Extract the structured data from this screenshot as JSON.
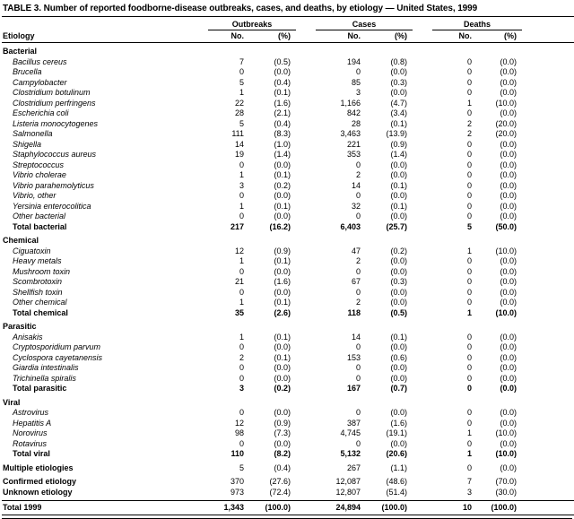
{
  "title": "TABLE 3. Number of reported foodborne-disease outbreaks, cases, and deaths, by etiology — United States, 1999",
  "table": {
    "columns": {
      "etiology": "Etiology",
      "groups": [
        {
          "label": "Outbreaks",
          "sub": [
            "No.",
            "(%)"
          ]
        },
        {
          "label": "Cases",
          "sub": [
            "No.",
            "(%)"
          ]
        },
        {
          "label": "Deaths",
          "sub": [
            "No.",
            "(%)"
          ]
        }
      ]
    },
    "sections": [
      {
        "header": "Bacterial",
        "rows": [
          {
            "label": "Bacillus cereus",
            "values": [
              "7",
              "(0.5)",
              "194",
              "(0.8)",
              "0",
              "(0.0)"
            ]
          },
          {
            "label": "Brucella",
            "values": [
              "0",
              "(0.0)",
              "0",
              "(0.0)",
              "0",
              "(0.0)"
            ]
          },
          {
            "label": "Campylobacter",
            "values": [
              "5",
              "(0.4)",
              "85",
              "(0.3)",
              "0",
              "(0.0)"
            ]
          },
          {
            "label": "Clostridium botulinum",
            "values": [
              "1",
              "(0.1)",
              "3",
              "(0.0)",
              "0",
              "(0.0)"
            ]
          },
          {
            "label": "Clostridium perfringens",
            "values": [
              "22",
              "(1.6)",
              "1,166",
              "(4.7)",
              "1",
              "(10.0)"
            ]
          },
          {
            "label": "Escherichia coli",
            "values": [
              "28",
              "(2.1)",
              "842",
              "(3.4)",
              "0",
              "(0.0)"
            ]
          },
          {
            "label": "Listeria monocytogenes",
            "values": [
              "5",
              "(0.4)",
              "28",
              "(0.1)",
              "2",
              "(20.0)"
            ]
          },
          {
            "label": "Salmonella",
            "values": [
              "111",
              "(8.3)",
              "3,463",
              "(13.9)",
              "2",
              "(20.0)"
            ]
          },
          {
            "label": "Shigella",
            "values": [
              "14",
              "(1.0)",
              "221",
              "(0.9)",
              "0",
              "(0.0)"
            ]
          },
          {
            "label": "Staphylococcus aureus",
            "values": [
              "19",
              "(1.4)",
              "353",
              "(1.4)",
              "0",
              "(0.0)"
            ]
          },
          {
            "label": "Streptococcus",
            "values": [
              "0",
              "(0.0)",
              "0",
              "(0.0)",
              "0",
              "(0.0)"
            ]
          },
          {
            "label": "Vibrio cholerae",
            "values": [
              "1",
              "(0.1)",
              "2",
              "(0.0)",
              "0",
              "(0.0)"
            ]
          },
          {
            "label": "Vibrio parahemolyticus",
            "values": [
              "3",
              "(0.2)",
              "14",
              "(0.1)",
              "0",
              "(0.0)"
            ]
          },
          {
            "label": "Vibrio, other",
            "values": [
              "0",
              "(0.0)",
              "0",
              "(0.0)",
              "0",
              "(0.0)"
            ]
          },
          {
            "label": "Yersinia enterocolitica",
            "values": [
              "1",
              "(0.1)",
              "32",
              "(0.1)",
              "0",
              "(0.0)"
            ]
          },
          {
            "label": "Other bacterial",
            "values": [
              "0",
              "(0.0)",
              "0",
              "(0.0)",
              "0",
              "(0.0)"
            ]
          }
        ],
        "total": {
          "label": "Total bacterial",
          "values": [
            "217",
            "(16.2)",
            "6,403",
            "(25.7)",
            "5",
            "(50.0)"
          ]
        }
      },
      {
        "header": "Chemical",
        "rows": [
          {
            "label": "Ciguatoxin",
            "values": [
              "12",
              "(0.9)",
              "47",
              "(0.2)",
              "1",
              "(10.0)"
            ]
          },
          {
            "label": "Heavy metals",
            "values": [
              "1",
              "(0.1)",
              "2",
              "(0.0)",
              "0",
              "(0.0)"
            ]
          },
          {
            "label": "Mushroom toxin",
            "values": [
              "0",
              "(0.0)",
              "0",
              "(0.0)",
              "0",
              "(0.0)"
            ]
          },
          {
            "label": "Scombrotoxin",
            "values": [
              "21",
              "(1.6)",
              "67",
              "(0.3)",
              "0",
              "(0.0)"
            ]
          },
          {
            "label": "Shellfish toxin",
            "values": [
              "0",
              "(0.0)",
              "0",
              "(0.0)",
              "0",
              "(0.0)"
            ]
          },
          {
            "label": "Other chemical",
            "values": [
              "1",
              "(0.1)",
              "2",
              "(0.0)",
              "0",
              "(0.0)"
            ]
          }
        ],
        "total": {
          "label": "Total chemical",
          "values": [
            "35",
            "(2.6)",
            "118",
            "(0.5)",
            "1",
            "(10.0)"
          ]
        }
      },
      {
        "header": "Parasitic",
        "rows": [
          {
            "label": "Anisakis",
            "values": [
              "1",
              "(0.1)",
              "14",
              "(0.1)",
              "0",
              "(0.0)"
            ]
          },
          {
            "label": "Cryptosporidium parvum",
            "values": [
              "0",
              "(0.0)",
              "0",
              "(0.0)",
              "0",
              "(0.0)"
            ]
          },
          {
            "label": "Cyclospora cayetanensis",
            "values": [
              "2",
              "(0.1)",
              "153",
              "(0.6)",
              "0",
              "(0.0)"
            ]
          },
          {
            "label": "Giardia intestinalis",
            "values": [
              "0",
              "(0.0)",
              "0",
              "(0.0)",
              "0",
              "(0.0)"
            ]
          },
          {
            "label": "Trichinella spiralis",
            "values": [
              "0",
              "(0.0)",
              "0",
              "(0.0)",
              "0",
              "(0.0)"
            ]
          }
        ],
        "total": {
          "label": "Total parasitic",
          "values": [
            "3",
            "(0.2)",
            "167",
            "(0.7)",
            "0",
            "(0.0)"
          ]
        }
      },
      {
        "header": "Viral",
        "rows": [
          {
            "label": "Astrovirus",
            "values": [
              "0",
              "(0.0)",
              "0",
              "(0.0)",
              "0",
              "(0.0)"
            ]
          },
          {
            "label": "Hepatitis A",
            "values": [
              "12",
              "(0.9)",
              "387",
              "(1.6)",
              "0",
              "(0.0)"
            ]
          },
          {
            "label": "Norovirus",
            "values": [
              "98",
              "(7.3)",
              "4,745",
              "(19.1)",
              "1",
              "(10.0)"
            ]
          },
          {
            "label": "Rotavirus",
            "values": [
              "0",
              "(0.0)",
              "0",
              "(0.0)",
              "0",
              "(0.0)"
            ]
          }
        ],
        "total": {
          "label": "Total viral",
          "values": [
            "110",
            "(8.2)",
            "5,132",
            "(20.6)",
            "1",
            "(10.0)"
          ]
        }
      }
    ],
    "summary": [
      {
        "label": "Multiple etiologies",
        "values": [
          "5",
          "(0.4)",
          "267",
          "(1.1)",
          "0",
          "(0.0)"
        ],
        "gap": true
      },
      {
        "label": "Confirmed etiology",
        "values": [
          "370",
          "(27.6)",
          "12,087",
          "(48.6)",
          "7",
          "(70.0)"
        ],
        "gap": true
      },
      {
        "label": "Unknown etiology",
        "values": [
          "973",
          "(72.4)",
          "12,807",
          "(51.4)",
          "3",
          "(30.0)"
        ],
        "gap": false
      }
    ],
    "grand_total": {
      "label": "Total 1999",
      "values": [
        "1,343",
        "(100.0)",
        "24,894",
        "(100.0)",
        "10",
        "(100.0)"
      ]
    }
  }
}
